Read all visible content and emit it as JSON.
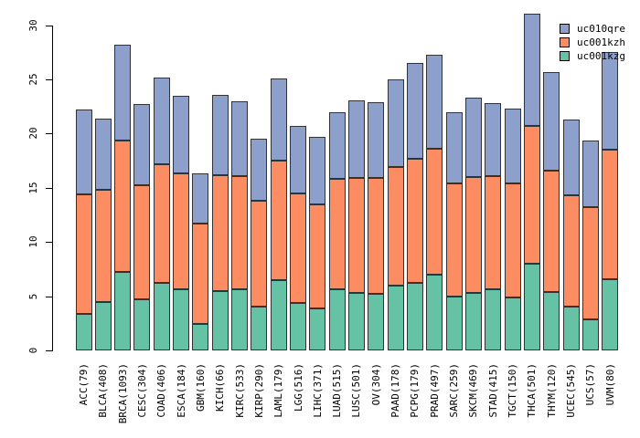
{
  "chart_data": {
    "type": "bar",
    "stacked": true,
    "title": "",
    "xlabel": "",
    "ylabel": "",
    "grid": false,
    "categories": [
      "ACC(79)",
      "BLCA(408)",
      "BRCA(1093)",
      "CESC(304)",
      "COAD(406)",
      "ESCA(184)",
      "GBM(160)",
      "KICH(66)",
      "KIRC(533)",
      "KIRP(290)",
      "LAML(179)",
      "LGG(516)",
      "LIHC(371)",
      "LUAD(515)",
      "LUSC(501)",
      "OV(304)",
      "PAAD(178)",
      "PCPG(179)",
      "PRAD(497)",
      "SARC(259)",
      "SKCM(469)",
      "STAD(415)",
      "TGCT(150)",
      "THCA(501)",
      "THYM(120)",
      "UCEC(545)",
      "UCS(57)",
      "UVM(80)"
    ],
    "series": [
      {
        "name": "uc001kzg",
        "color": "#66C2A5",
        "values": [
          3.4,
          4.5,
          7.2,
          4.7,
          6.2,
          5.6,
          2.4,
          5.5,
          5.6,
          4.0,
          6.5,
          4.4,
          3.9,
          5.6,
          5.3,
          5.2,
          6.0,
          6.2,
          7.0,
          5.0,
          5.3,
          5.6,
          4.9,
          8.0,
          5.4,
          4.0,
          2.9,
          6.6
        ]
      },
      {
        "name": "uc001kzh",
        "color": "#FC8D62",
        "values": [
          11.0,
          10.3,
          12.2,
          10.5,
          11.0,
          10.7,
          9.3,
          10.7,
          10.5,
          9.8,
          11.0,
          10.1,
          9.6,
          10.2,
          10.6,
          10.7,
          10.9,
          11.5,
          11.6,
          10.4,
          10.7,
          10.5,
          10.5,
          12.7,
          11.2,
          10.3,
          10.3,
          11.9
        ]
      },
      {
        "name": "uc010qre",
        "color": "#8DA0CB",
        "values": [
          7.8,
          6.6,
          8.8,
          7.5,
          8.0,
          7.2,
          4.6,
          7.4,
          6.9,
          5.7,
          7.6,
          6.2,
          6.2,
          6.2,
          7.2,
          7.0,
          8.1,
          8.8,
          8.7,
          6.6,
          7.3,
          6.7,
          6.9,
          10.4,
          9.1,
          7.0,
          6.2,
          9.0
        ]
      }
    ],
    "y_axis": {
      "ticks": [
        0,
        5,
        10,
        15,
        20,
        25,
        30
      ],
      "ylim": [
        0,
        31.3
      ]
    },
    "legend": {
      "position": "top-right",
      "entries": [
        {
          "label": "uc010qre",
          "color": "#8DA0CB"
        },
        {
          "label": "uc001kzh",
          "color": "#FC8D62"
        },
        {
          "label": "uc001kzg",
          "color": "#66C2A5"
        }
      ]
    },
    "bar_border_color": "#333333",
    "background_color": "#ffffff"
  }
}
